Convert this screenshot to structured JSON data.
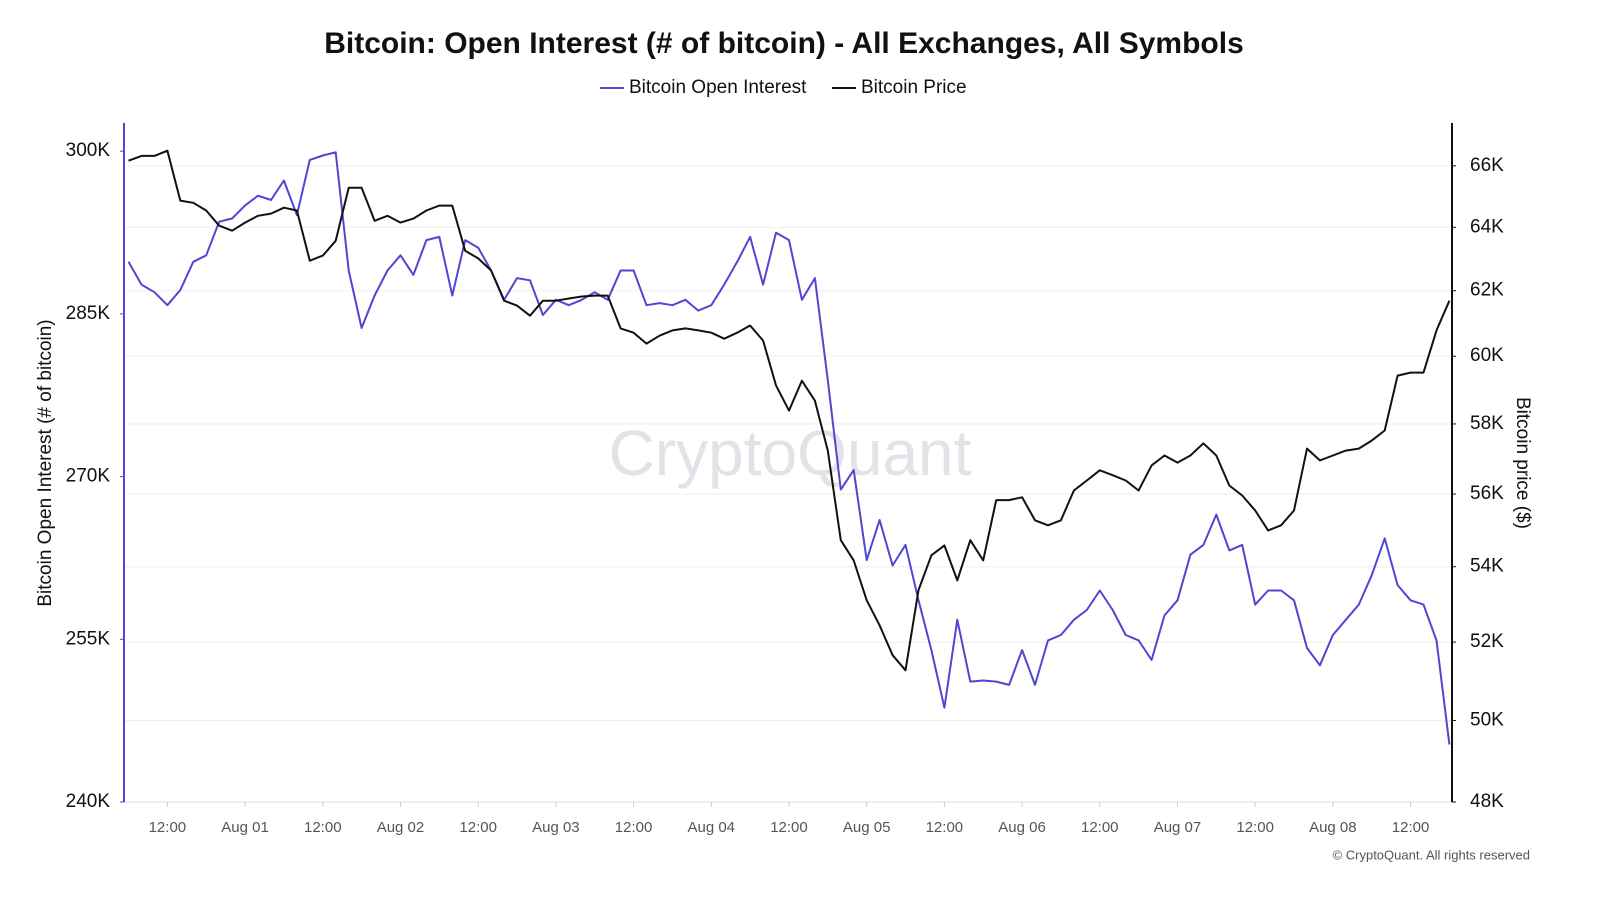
{
  "chart_data": {
    "type": "line",
    "title": "Bitcoin: Open Interest (# of bitcoin) - All Exchanges, All Symbols",
    "ylabel": "Bitcoin Open Interest (# of bitcoin)",
    "y2label": "Bitcoin price ($)",
    "watermark": "CryptoQuant",
    "footer": "© CryptoQuant. All rights reserved",
    "x": [
      -18,
      -16,
      -14,
      -12,
      -10,
      -8,
      -6,
      -4,
      -2,
      0,
      2,
      4,
      6,
      8,
      10,
      12,
      14,
      16,
      18,
      20,
      22,
      24,
      26,
      28,
      30,
      32,
      34,
      36,
      38,
      40,
      42,
      44,
      46,
      48,
      50,
      52,
      54,
      56,
      58,
      60,
      62,
      64,
      66,
      68,
      70,
      72,
      74,
      76,
      78,
      80,
      82,
      84,
      86,
      88,
      90,
      92,
      94,
      96,
      98,
      100,
      102,
      104,
      106,
      108,
      110,
      112,
      114,
      116,
      118,
      120,
      122,
      124,
      126,
      128,
      130,
      132,
      134,
      136,
      138,
      140,
      142,
      144,
      146,
      148,
      150,
      152,
      154,
      156,
      158,
      160,
      162,
      164,
      166,
      168,
      170,
      172,
      174,
      176,
      178,
      180,
      182,
      184,
      186
    ],
    "xlim": [
      -18.7,
      186.4
    ],
    "xticks": [
      {
        "value": -12,
        "label": "12:00"
      },
      {
        "value": 0,
        "label": "Aug 01"
      },
      {
        "value": 12,
        "label": "12:00"
      },
      {
        "value": 24,
        "label": "Aug 02"
      },
      {
        "value": 36,
        "label": "12:00"
      },
      {
        "value": 48,
        "label": "Aug 03"
      },
      {
        "value": 60,
        "label": "12:00"
      },
      {
        "value": 72,
        "label": "Aug 04"
      },
      {
        "value": 84,
        "label": "12:00"
      },
      {
        "value": 96,
        "label": "Aug 05"
      },
      {
        "value": 108,
        "label": "12:00"
      },
      {
        "value": 120,
        "label": "Aug 06"
      },
      {
        "value": 132,
        "label": "12:00"
      },
      {
        "value": 144,
        "label": "Aug 07"
      },
      {
        "value": 156,
        "label": "12:00"
      },
      {
        "value": 168,
        "label": "Aug 08"
      },
      {
        "value": 180,
        "label": "12:00"
      }
    ],
    "ylim": [
      240000,
      302600
    ],
    "yticks": [
      {
        "value": 240000,
        "label": "240K"
      },
      {
        "value": 255000,
        "label": "255K"
      },
      {
        "value": 270000,
        "label": "270K"
      },
      {
        "value": 285000,
        "label": "285K"
      },
      {
        "value": 300000,
        "label": "300K"
      }
    ],
    "y2lim": [
      48000,
      67430
    ],
    "y2log": true,
    "y2ticks": [
      {
        "value": 48000,
        "label": "48K"
      },
      {
        "value": 50000,
        "label": "50K"
      },
      {
        "value": 52000,
        "label": "52K"
      },
      {
        "value": 54000,
        "label": "54K"
      },
      {
        "value": 56000,
        "label": "56K"
      },
      {
        "value": 58000,
        "label": "58K"
      },
      {
        "value": 60000,
        "label": "60K"
      },
      {
        "value": 62000,
        "label": "62K"
      },
      {
        "value": 64000,
        "label": "64K"
      },
      {
        "value": 66000,
        "label": "66K"
      }
    ],
    "grid": "y2",
    "series": [
      {
        "name": "Bitcoin Open Interest",
        "color": "#5046d2",
        "values": [
          289800,
          287700,
          287000,
          285800,
          287200,
          289800,
          290400,
          293500,
          293800,
          295000,
          295900,
          295500,
          297300,
          294100,
          299200,
          299600,
          299900,
          289000,
          283700,
          286700,
          289000,
          290400,
          288600,
          291800,
          292100,
          286700,
          291800,
          291100,
          289000,
          286300,
          288300,
          288100,
          284900,
          286300,
          285800,
          286300,
          287000,
          286300,
          289000,
          289000,
          285800,
          286000,
          285800,
          286300,
          285300,
          285800,
          287700,
          289800,
          292100,
          287700,
          292500,
          291800,
          286300,
          288300,
          278900,
          268800,
          270600,
          262300,
          266000,
          261800,
          263700,
          258600,
          254000,
          248700,
          256800,
          251100,
          251200,
          251100,
          250800,
          254000,
          250800,
          254900,
          255400,
          256800,
          257700,
          259500,
          257700,
          255400,
          254900,
          253100,
          257200,
          258600,
          262800,
          263700,
          266500,
          263200,
          263700,
          258200,
          259500,
          259500,
          258600,
          254200,
          252600,
          255400,
          256800,
          258200,
          260900,
          264300,
          260000,
          258600,
          258200,
          254900,
          245300
        ]
      },
      {
        "name": "Bitcoin Price",
        "color": "#111111",
        "axis": "y2",
        "values": [
          66170,
          66330,
          66330,
          66500,
          64860,
          64790,
          64540,
          64050,
          63890,
          64150,
          64370,
          64440,
          64630,
          64540,
          62940,
          63100,
          63570,
          65280,
          65280,
          64210,
          64370,
          64150,
          64280,
          64540,
          64700,
          64700,
          63250,
          63010,
          62630,
          61690,
          61540,
          61230,
          61690,
          61690,
          61760,
          61820,
          61850,
          61850,
          60840,
          60710,
          60380,
          60620,
          60780,
          60840,
          60780,
          60710,
          60530,
          60710,
          60930,
          60470,
          59130,
          58390,
          59270,
          58680,
          57230,
          54720,
          54170,
          53100,
          52440,
          51660,
          51270,
          53370,
          54310,
          54580,
          53630,
          54720,
          54170,
          55830,
          55830,
          55910,
          55270,
          55130,
          55270,
          56100,
          56380,
          56670,
          56530,
          56380,
          56100,
          56810,
          57090,
          56890,
          57090,
          57440,
          57090,
          56240,
          55960,
          55540,
          54990,
          55130,
          55540,
          57290,
          56950,
          57090,
          57230,
          57290,
          57520,
          57810,
          59420,
          59510,
          59510,
          60780,
          61690
        ]
      }
    ]
  }
}
